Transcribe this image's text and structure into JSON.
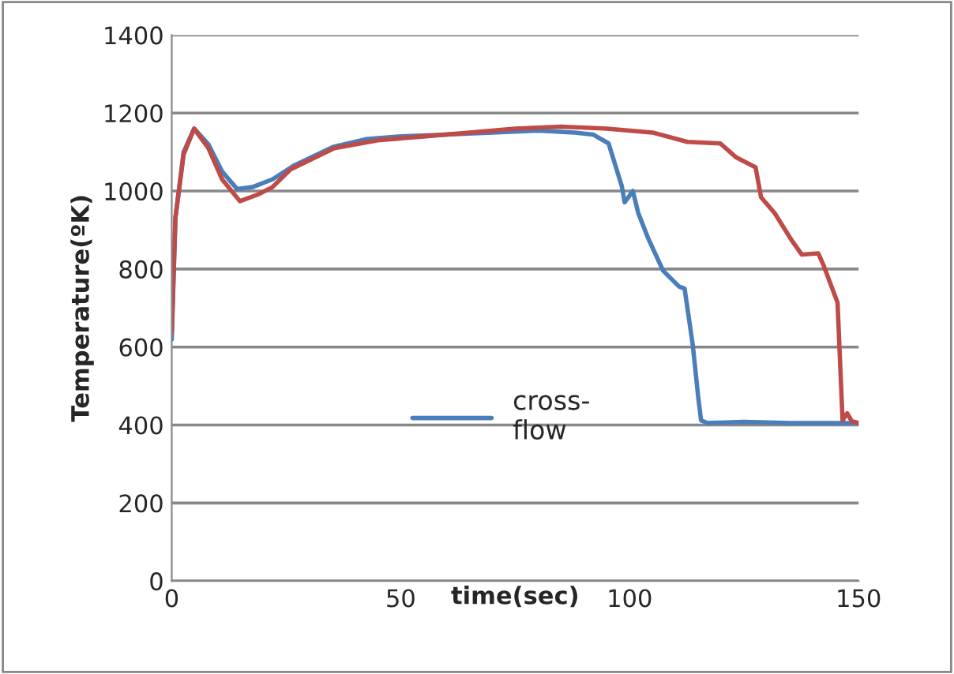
{
  "chart_data": {
    "type": "line",
    "xlabel": "time(sec)",
    "ylabel": "Temperature(ºK)",
    "xlim": [
      0,
      150
    ],
    "xticks": [
      0,
      50,
      100,
      150
    ],
    "ylim": [
      0,
      1400
    ],
    "yticks": [
      0,
      200,
      400,
      600,
      800,
      1000,
      1200,
      1400
    ],
    "grid": "y",
    "legend": "center",
    "marker": "none",
    "line_style": "solid",
    "series": [
      {
        "name": "cross-\nflow",
        "color": "#4a7ebb",
        "x": [
          0,
          0.8,
          2.6,
          4.9,
          8,
          11,
          14.3,
          17.6,
          22,
          26.8,
          35.2,
          42.4,
          50,
          60,
          70,
          80,
          88,
          92,
          95.4,
          98.3,
          98.9,
          100.7,
          101.9,
          104,
          107.3,
          110.8,
          112,
          113.8,
          115,
          115.6,
          117,
          125,
          135,
          150
        ],
        "values": [
          620,
          930,
          1100,
          1160,
          1120,
          1050,
          1005,
          1010,
          1030,
          1066,
          1113,
          1133,
          1140,
          1145,
          1150,
          1155,
          1150,
          1145,
          1122,
          1012,
          971,
          1000,
          943,
          880,
          796,
          755,
          750,
          604,
          469,
          412,
          405,
          408,
          405,
          405
        ]
      },
      {
        "color": "#be4b48",
        "x": [
          0,
          0.8,
          2.6,
          4.9,
          8,
          11,
          14.9,
          18.8,
          22,
          26,
          35.5,
          45,
          55,
          65,
          75,
          85,
          95,
          105,
          112.6,
          119.8,
          123.3,
          127.5,
          128.7,
          131.7,
          135.2,
          137.6,
          141.2,
          142.4,
          145.4,
          146.5,
          147.5,
          148.5,
          150
        ],
        "values": [
          637,
          931,
          1094,
          1160,
          1110,
          1030,
          974,
          991,
          1010,
          1056,
          1110,
          1130,
          1140,
          1150,
          1160,
          1165,
          1160,
          1150,
          1126,
          1122,
          1086,
          1061,
          984,
          943,
          877,
          837,
          840,
          808,
          714,
          412,
          430,
          410,
          405
        ]
      }
    ]
  }
}
